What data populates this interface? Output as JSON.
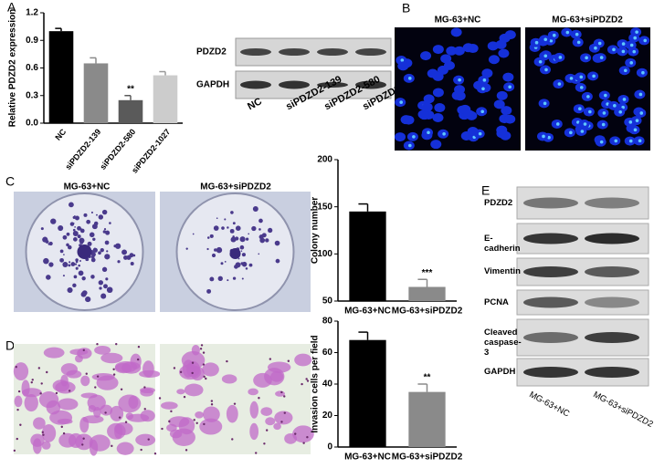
{
  "chart_data": [
    {
      "type": "bar",
      "y_label": "Relative PDZD2 expression",
      "categories": [
        "NC",
        "siPDZD2-139",
        "siPDZD2-580",
        "siPDZD2-1027"
      ],
      "values": [
        1.0,
        0.65,
        0.25,
        0.52
      ],
      "errors": [
        0.03,
        0.06,
        0.05,
        0.04
      ],
      "significance": [
        null,
        null,
        "**",
        null
      ],
      "colors": [
        "#000000",
        "#8a8a8a",
        "#5a5a5a",
        "#cccccc"
      ],
      "ylim": [
        0,
        1.2
      ],
      "yticks": [
        {
          "value": 0,
          "label": "0.0"
        },
        0.3,
        0.6,
        0.9,
        1.2
      ]
    },
    {
      "type": "bar",
      "y_label": "Colony number",
      "categories": [
        "MG-63+NC",
        "MG-63+siPDZD2"
      ],
      "values": [
        145,
        65
      ],
      "errors": [
        8,
        8
      ],
      "significance": [
        null,
        "***"
      ],
      "colors": [
        "#000000",
        "#8a8a8a"
      ],
      "ylim": [
        50,
        200
      ],
      "yticks": [
        50,
        100,
        150,
        200
      ]
    },
    {
      "type": "bar",
      "y_label": "Invasion cells per field",
      "categories": [
        "MG-63+NC",
        "MG-63+siPDZD2"
      ],
      "values": [
        68,
        35
      ],
      "errors": [
        5,
        5
      ],
      "significance": [
        null,
        "**"
      ],
      "colors": [
        "#000000",
        "#8a8a8a"
      ],
      "ylim": [
        0,
        80
      ],
      "yticks": [
        0,
        20,
        40,
        60,
        80
      ]
    }
  ],
  "panel_letters": [
    "A",
    "B",
    "C",
    "D",
    "E"
  ],
  "blot_a": {
    "rows": [
      "PDZD2",
      "GAPDH"
    ],
    "lanes": [
      "NC",
      "siPDZD2-139",
      "siPDZD2-580",
      "siPDZD2-1027"
    ]
  },
  "panel_b": {
    "titles": [
      "MG-63+NC",
      "MG-63+siPDZD2"
    ]
  },
  "panel_c": {
    "titles": [
      "MG-63+NC",
      "MG-63+siPDZD2"
    ]
  },
  "blot_e": {
    "rows": [
      "PDZD2",
      "E-cadherin",
      "Vimentin",
      "PCNA",
      "Cleaved caspase-3",
      "GAPDH"
    ],
    "lanes": [
      "MG-63+NC",
      "MG-63+siPDZD2"
    ]
  }
}
